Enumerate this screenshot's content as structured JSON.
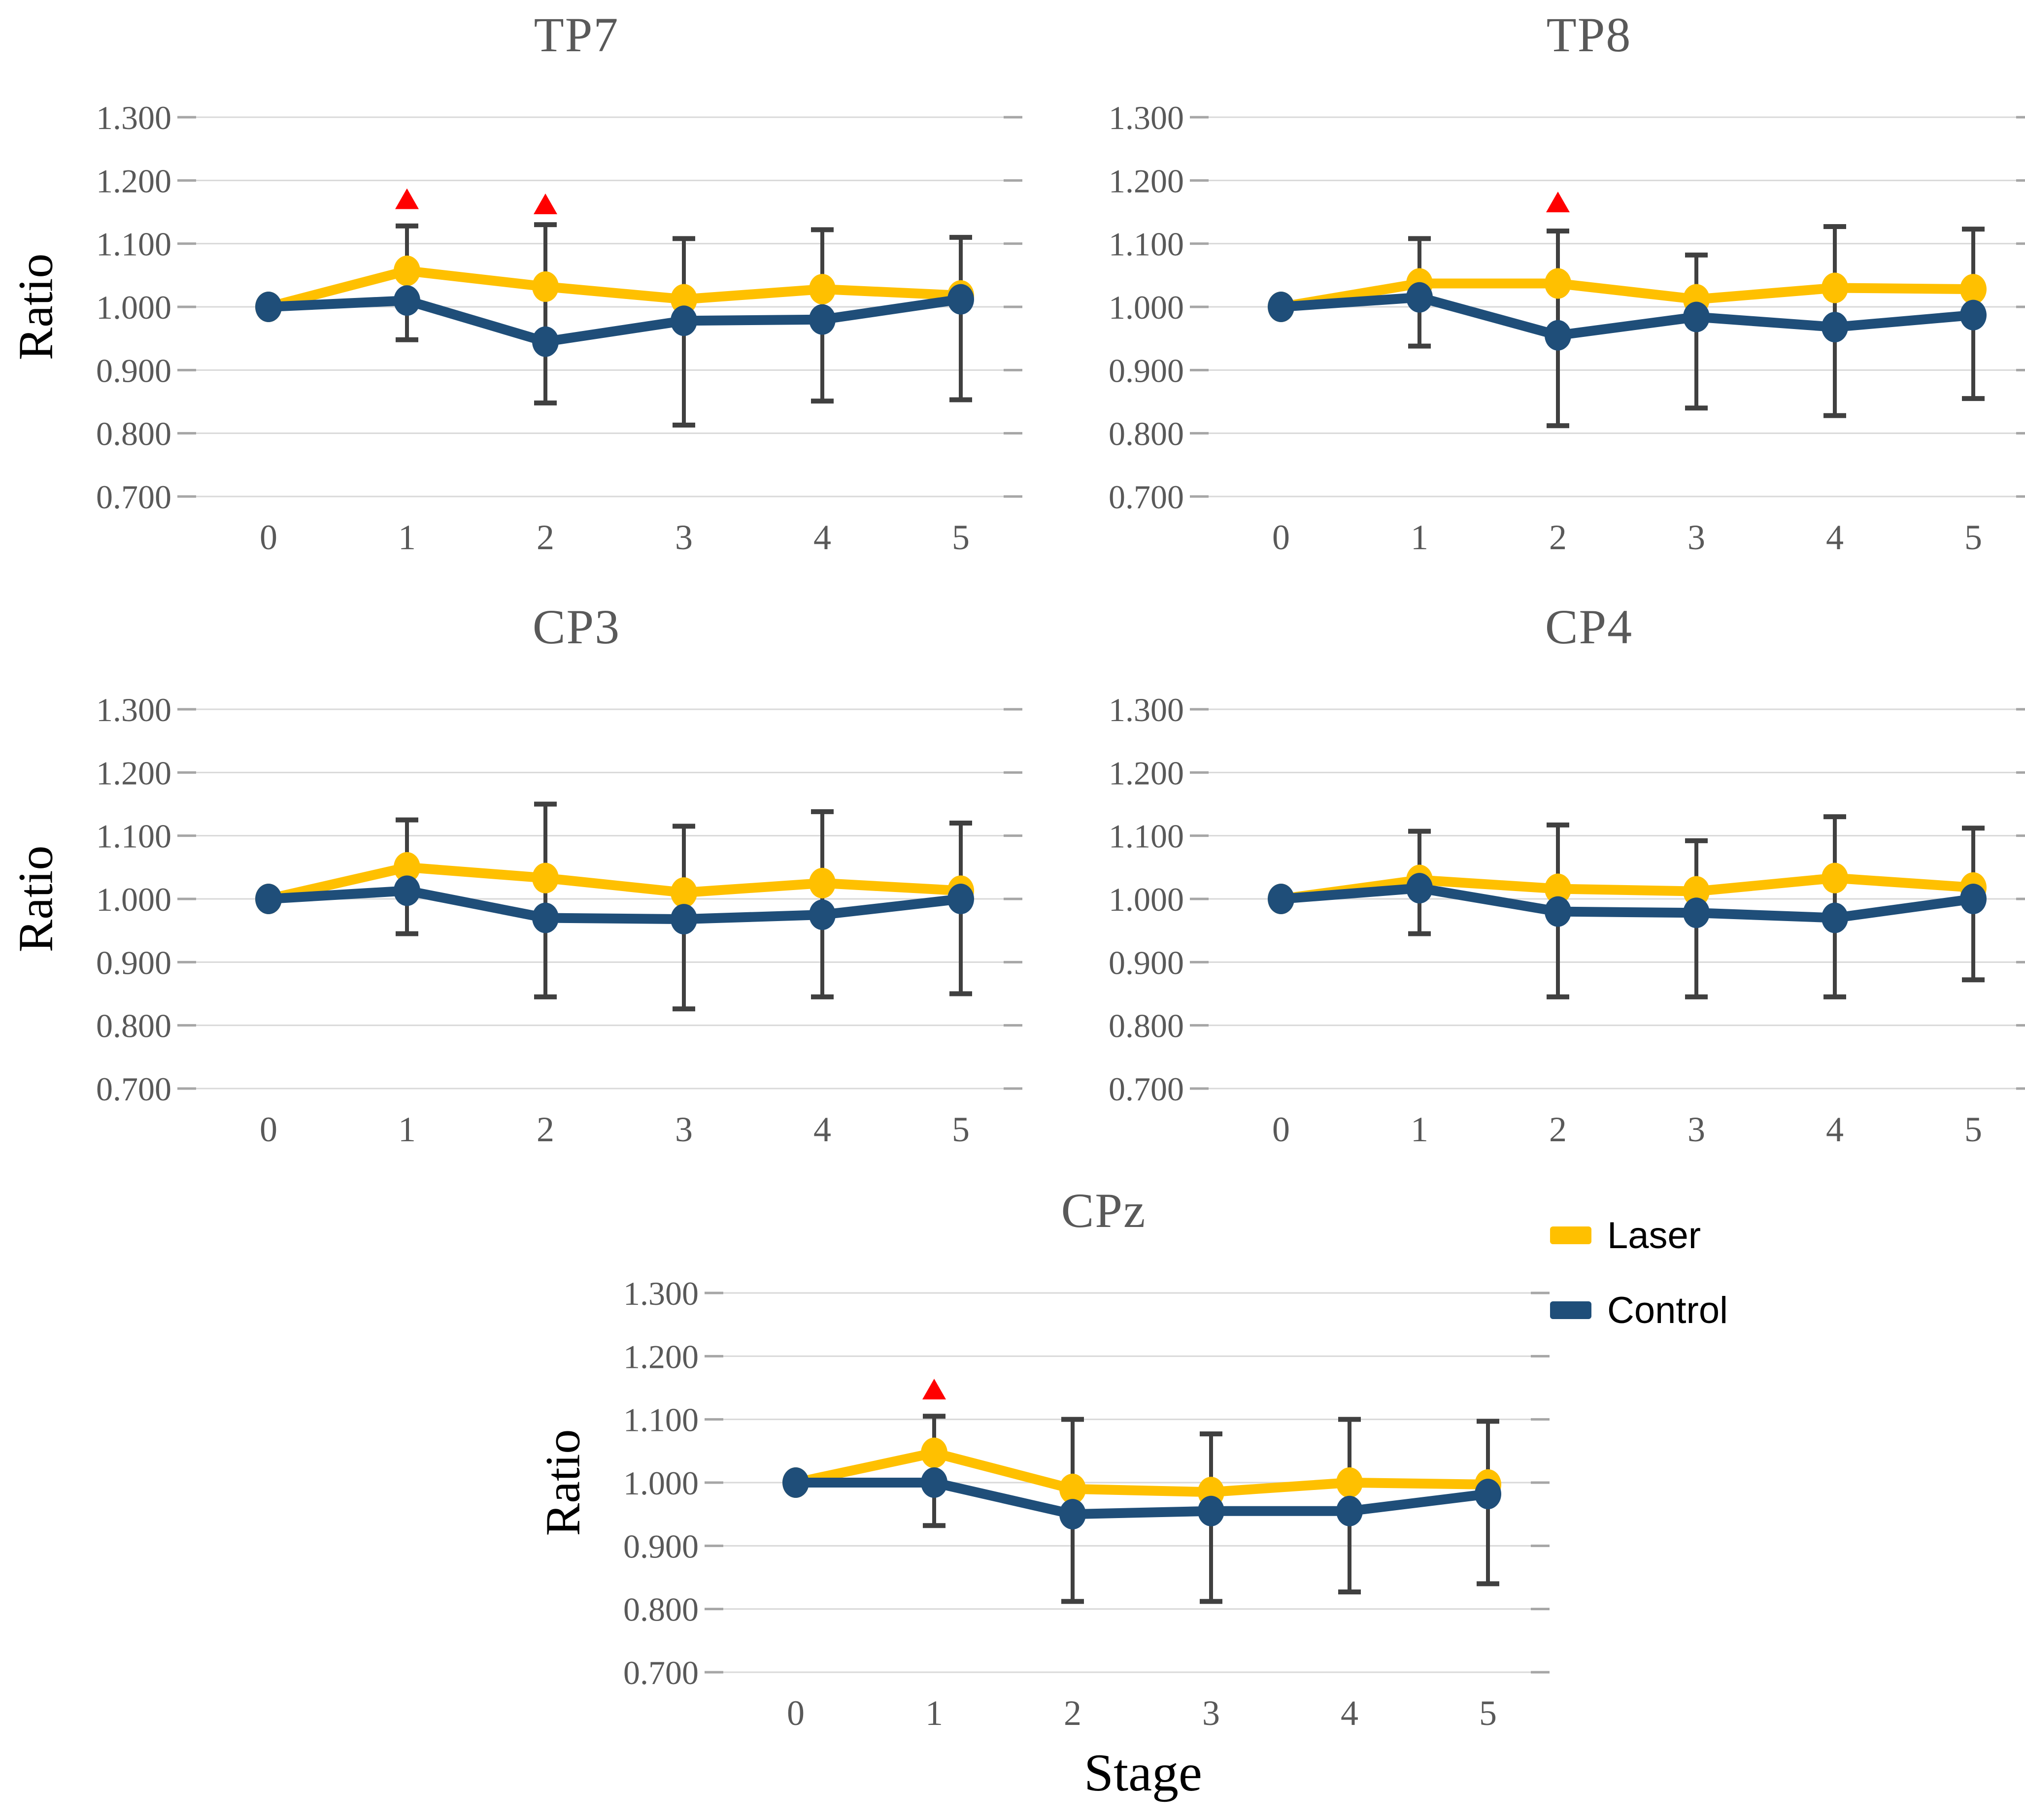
{
  "figure": {
    "background": "#FFFFFF"
  },
  "axes": {
    "ylabel": "Ratio",
    "xlabel": "Stage",
    "y_ticks": [
      "1.300",
      "1.200",
      "1.100",
      "1.000",
      "0.900",
      "0.800",
      "0.700"
    ],
    "y_tick_values": [
      1.3,
      1.2,
      1.1,
      1.0,
      0.9,
      0.8,
      0.7
    ],
    "x_ticks": [
      "0",
      "1",
      "2",
      "3",
      "4",
      "5"
    ],
    "ylim": [
      0.7,
      1.3
    ],
    "grid": "horizontal"
  },
  "legend": {
    "position": "right-of-bottom-chart",
    "items": [
      {
        "label": "Laser",
        "color": "#FFC000"
      },
      {
        "label": "Control",
        "color": "#1F4E79"
      }
    ]
  },
  "colors": {
    "laser": "#FFC000",
    "control": "#1F4E79",
    "error_bar": "#404040",
    "gridline": "#D9D9D9",
    "axis_tick": "#A6A6A6",
    "title_text": "#595959",
    "tick_text": "#595959",
    "significance_marker": "#FF0000"
  },
  "chart_data": [
    {
      "type": "line",
      "title": "TP7",
      "x": [
        0,
        1,
        2,
        3,
        4,
        5
      ],
      "series": [
        {
          "name": "Laser",
          "values": [
            1.0,
            1.057,
            1.032,
            1.012,
            1.028,
            1.018
          ]
        },
        {
          "name": "Control",
          "values": [
            1.0,
            1.01,
            0.945,
            0.978,
            0.98,
            1.012
          ]
        }
      ],
      "error_top": [
        null,
        1.128,
        1.13,
        1.108,
        1.122,
        1.11
      ],
      "error_bottom": [
        null,
        0.948,
        0.848,
        0.813,
        0.851,
        0.853
      ],
      "significance_markers": [
        {
          "x": 1,
          "y": 1.171
        },
        {
          "x": 2,
          "y": 1.163
        }
      ]
    },
    {
      "type": "line",
      "title": "TP8",
      "x": [
        0,
        1,
        2,
        3,
        4,
        5
      ],
      "series": [
        {
          "name": "Laser",
          "values": [
            1.0,
            1.037,
            1.037,
            1.012,
            1.03,
            1.028
          ]
        },
        {
          "name": "Control",
          "values": [
            1.0,
            1.015,
            0.955,
            0.984,
            0.968,
            0.987
          ]
        }
      ],
      "error_top": [
        null,
        1.108,
        1.12,
        1.082,
        1.127,
        1.123
      ],
      "error_bottom": [
        null,
        0.938,
        0.812,
        0.84,
        0.828,
        0.855
      ],
      "significance_markers": [
        {
          "x": 2,
          "y": 1.166
        }
      ]
    },
    {
      "type": "line",
      "title": "CP3",
      "x": [
        0,
        1,
        2,
        3,
        4,
        5
      ],
      "series": [
        {
          "name": "Laser",
          "values": [
            1.0,
            1.05,
            1.033,
            1.01,
            1.025,
            1.013
          ]
        },
        {
          "name": "Control",
          "values": [
            1.0,
            1.013,
            0.97,
            0.968,
            0.975,
            1.0
          ]
        }
      ],
      "error_top": [
        null,
        1.125,
        1.15,
        1.115,
        1.138,
        1.12
      ],
      "error_bottom": [
        null,
        0.945,
        0.845,
        0.826,
        0.845,
        0.85
      ],
      "significance_markers": []
    },
    {
      "type": "line",
      "title": "CP4",
      "x": [
        0,
        1,
        2,
        3,
        4,
        5
      ],
      "series": [
        {
          "name": "Laser",
          "values": [
            1.0,
            1.03,
            1.016,
            1.012,
            1.033,
            1.018
          ]
        },
        {
          "name": "Control",
          "values": [
            1.0,
            1.017,
            0.98,
            0.978,
            0.97,
            1.0
          ]
        }
      ],
      "error_top": [
        null,
        1.107,
        1.117,
        1.092,
        1.13,
        1.112
      ],
      "error_bottom": [
        null,
        0.945,
        0.845,
        0.845,
        0.845,
        0.872
      ],
      "significance_markers": []
    },
    {
      "type": "line",
      "title": "CPz",
      "x": [
        0,
        1,
        2,
        3,
        4,
        5
      ],
      "series": [
        {
          "name": "Laser",
          "values": [
            1.0,
            1.047,
            0.99,
            0.985,
            1.0,
            0.997
          ]
        },
        {
          "name": "Control",
          "values": [
            1.0,
            1.0,
            0.95,
            0.955,
            0.955,
            0.982
          ]
        }
      ],
      "error_top": [
        null,
        1.105,
        1.1,
        1.077,
        1.1,
        1.097
      ],
      "error_bottom": [
        null,
        0.932,
        0.812,
        0.812,
        0.827,
        0.84
      ],
      "significance_markers": [
        {
          "x": 1,
          "y": 1.148
        }
      ]
    }
  ]
}
